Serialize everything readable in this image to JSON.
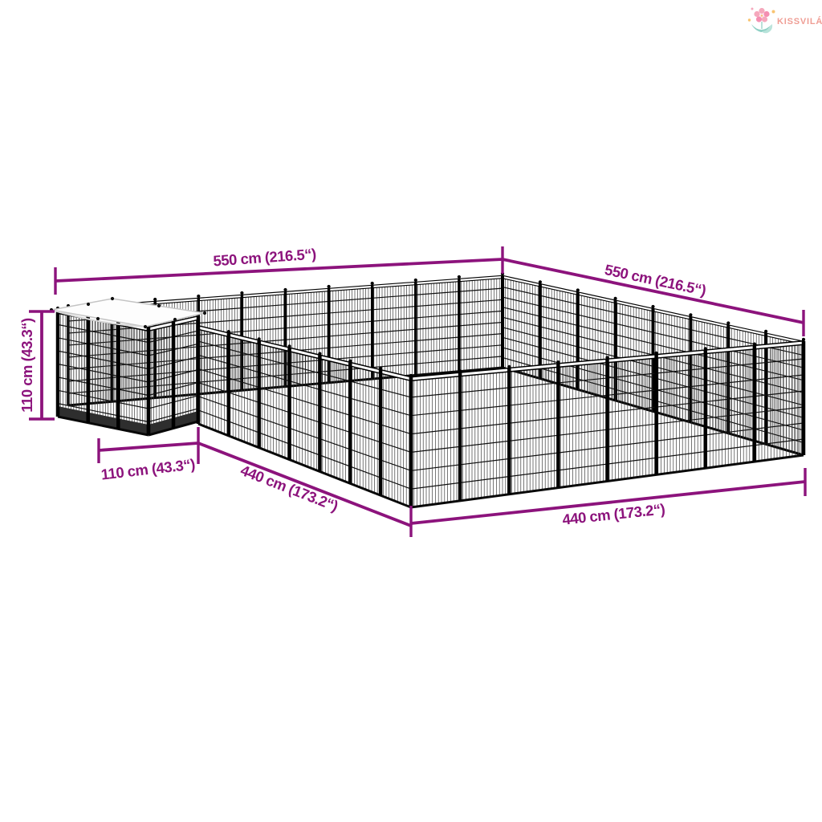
{
  "brand": {
    "name": "KISSVILÁG",
    "logo_icon": "flower-with-leaves-icon",
    "text_color": "#EF9D94",
    "petal_color": "#F5A8BC",
    "leaf_color_dark": "#8FD0C5",
    "leaf_color_light": "#B8E3DA",
    "sparkle_color": "#F8C471"
  },
  "colors": {
    "dimension_annotation": "#8C137C",
    "mesh_wire": "#2F2F2F",
    "frame_post": "#000000",
    "roof_tarp": "#FDFDFD",
    "background": "#FFFFFF"
  },
  "product": {
    "description": "Black steel dog kennel enclosure with mesh panels and roofed cube section",
    "height_px_canvas": "1024"
  },
  "dimensions": {
    "top_left": {
      "label": "550 cm (216.5“)"
    },
    "top_right": {
      "label": "550 cm (216.5“)"
    },
    "side_height": {
      "label": "110 cm (43.3“)"
    },
    "cube_width": {
      "label": "110 cm (43.3“)"
    },
    "front_left": {
      "label": "440 cm (173.2“)"
    },
    "front_right": {
      "label": "440 cm (173.2“)"
    }
  }
}
